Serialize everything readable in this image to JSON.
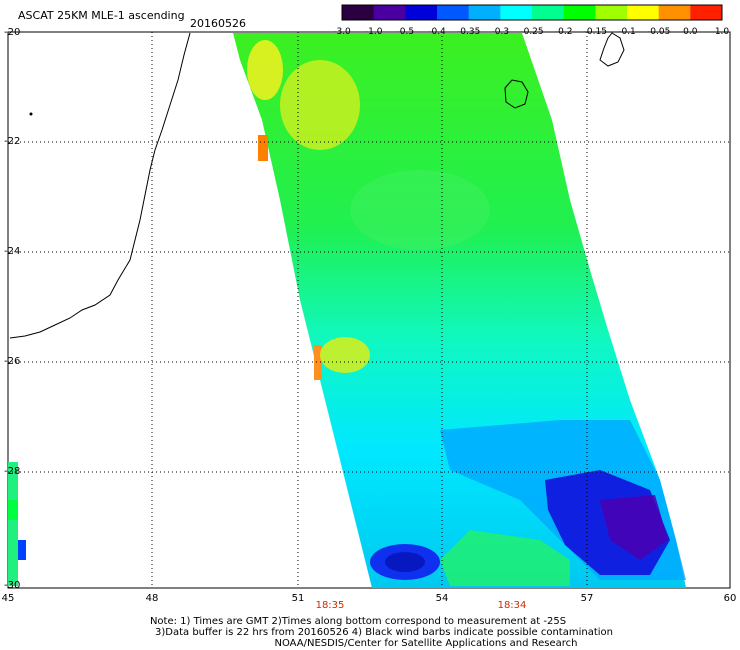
{
  "header": {
    "title": "ASCAT 25KM MLE-1 ascending",
    "date": "20160526"
  },
  "colorbar": {
    "ticks": [
      "-3.0",
      "-1.0",
      "-0.5",
      "-0.4",
      "-0.35",
      "-0.3",
      "-0.25",
      "-0.2",
      "-0.15",
      "-0.1",
      "-0.05",
      "0.0",
      "1.0"
    ],
    "colors": [
      "#2a0040",
      "#4a00a0",
      "#0000d8",
      "#0058ff",
      "#00b0ff",
      "#00ffff",
      "#00ff90",
      "#00ff00",
      "#a0ff00",
      "#ffff00",
      "#ff9000",
      "#ff2000"
    ]
  },
  "map": {
    "lat_labels": [
      "-20",
      "-22",
      "-24",
      "-26",
      "-28",
      "-30"
    ],
    "lon_labels": [
      "45",
      "48",
      "51",
      "54",
      "57",
      "60"
    ],
    "times": [
      "18:35",
      "18:34"
    ]
  },
  "notes": {
    "line1": "Note: 1) Times are GMT 2)Times along bottom correspond to measurement at -25S",
    "line2": "3)Data buffer is 22 hrs from 20160526 4) Black wind barbs indicate possible contamination",
    "line3": "NOAA/NESDIS/Center for Satellite Applications and Research"
  }
}
